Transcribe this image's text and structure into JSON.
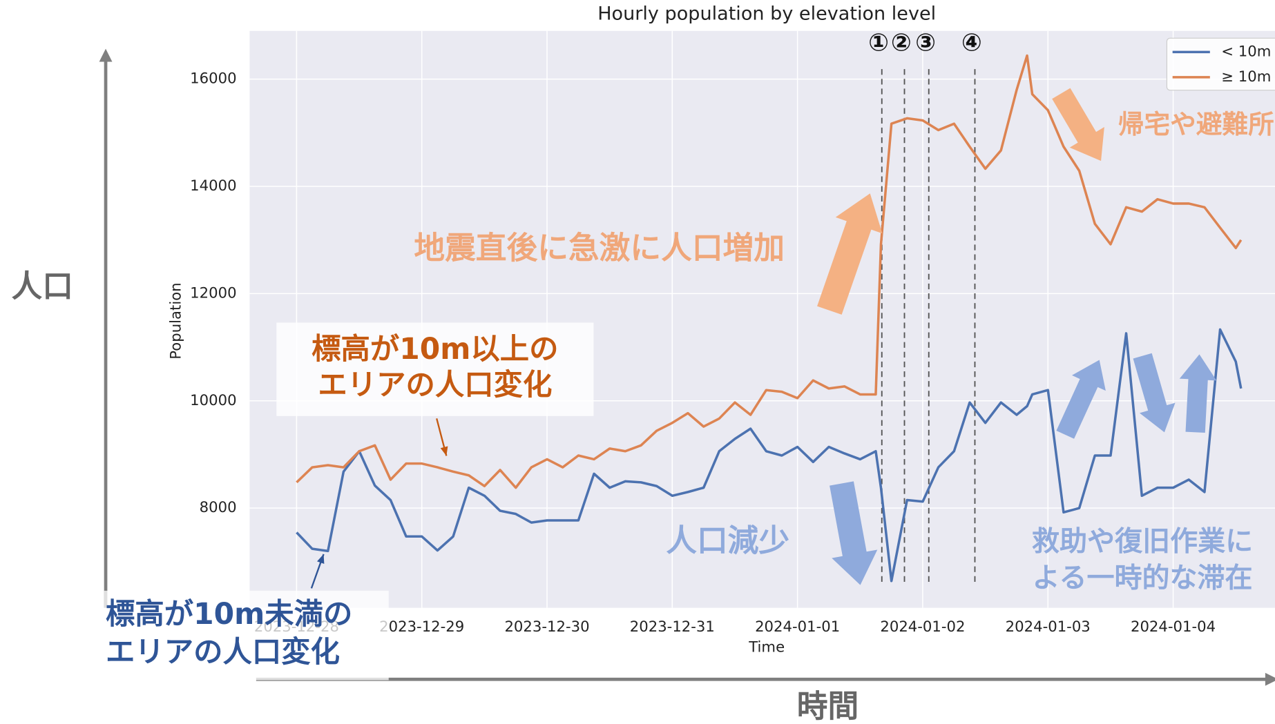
{
  "chart_data": {
    "type": "line",
    "title": "Hourly population by elevation level",
    "xlabel": "Time",
    "ylabel": "Population",
    "y_annotation": "人口",
    "x_annotation": "時間",
    "x": [
      "2023-12-28 00:00",
      "2023-12-28 03:00",
      "2023-12-28 06:00",
      "2023-12-28 09:00",
      "2023-12-28 12:00",
      "2023-12-28 15:00",
      "2023-12-28 18:00",
      "2023-12-28 21:00",
      "2023-12-29 00:00",
      "2023-12-29 03:00",
      "2023-12-29 06:00",
      "2023-12-29 09:00",
      "2023-12-29 12:00",
      "2023-12-29 15:00",
      "2023-12-29 18:00",
      "2023-12-29 21:00",
      "2023-12-30 00:00",
      "2023-12-30 03:00",
      "2023-12-30 06:00",
      "2023-12-30 09:00",
      "2023-12-30 12:00",
      "2023-12-30 15:00",
      "2023-12-30 18:00",
      "2023-12-30 21:00",
      "2023-12-31 00:00",
      "2023-12-31 03:00",
      "2023-12-31 06:00",
      "2023-12-31 09:00",
      "2023-12-31 12:00",
      "2023-12-31 15:00",
      "2023-12-31 18:00",
      "2023-12-31 21:00",
      "2024-01-01 00:00",
      "2024-01-01 03:00",
      "2024-01-01 06:00",
      "2024-01-01 09:00",
      "2024-01-01 12:00",
      "2024-01-01 15:00",
      "2024-01-01 16:00",
      "2024-01-01 18:00",
      "2024-01-01 21:00",
      "2024-01-02 00:00",
      "2024-01-02 03:00",
      "2024-01-02 06:00",
      "2024-01-02 09:00",
      "2024-01-02 12:00",
      "2024-01-02 15:00",
      "2024-01-02 18:00",
      "2024-01-02 20:00",
      "2024-01-02 21:00",
      "2024-01-03 00:00",
      "2024-01-03 03:00",
      "2024-01-03 06:00",
      "2024-01-03 09:00",
      "2024-01-03 12:00",
      "2024-01-03 15:00",
      "2024-01-03 18:00",
      "2024-01-03 21:00",
      "2024-01-04 00:00",
      "2024-01-04 03:00",
      "2024-01-04 06:00",
      "2024-01-04 09:00",
      "2024-01-04 12:00",
      "2024-01-04 13:00"
    ],
    "series": [
      {
        "name": "< 10m",
        "color": "#4c72b0",
        "values": [
          7545,
          7240,
          7200,
          8680,
          9060,
          8420,
          8150,
          7470,
          7470,
          7210,
          7470,
          8380,
          8230,
          7950,
          7890,
          7730,
          7770,
          7770,
          7770,
          8640,
          8380,
          8500,
          8480,
          8410,
          8230,
          8300,
          8380,
          9060,
          9290,
          9480,
          9060,
          8980,
          9140,
          8860,
          9140,
          9020,
          8910,
          9060,
          8380,
          6640,
          8150,
          8120,
          8760,
          9060,
          9970,
          9590,
          9970,
          9740,
          9900,
          10120,
          10200,
          7920,
          8000,
          8980,
          8980,
          11260,
          8230,
          8380,
          8380,
          8530,
          8300,
          11330,
          10730,
          10230
        ]
      },
      {
        "name": "≥ 10m",
        "color": "#dd8452",
        "values": [
          8480,
          8760,
          8800,
          8760,
          9060,
          9170,
          8530,
          8830,
          8830,
          8760,
          8680,
          8610,
          8410,
          8710,
          8380,
          8760,
          8910,
          8760,
          8980,
          8910,
          9110,
          9060,
          9170,
          9440,
          9590,
          9770,
          9520,
          9670,
          9970,
          9740,
          10200,
          10170,
          10050,
          10380,
          10230,
          10270,
          10120,
          10120,
          12920,
          15170,
          15270,
          15230,
          15050,
          15170,
          14740,
          14330,
          14670,
          15800,
          16440,
          15720,
          15420,
          14740,
          14290,
          13300,
          12920,
          13610,
          13530,
          13760,
          13680,
          13680,
          13610,
          13230,
          12850,
          13000
        ]
      }
    ],
    "xlim": [
      "2023-12-27 15:00",
      "2024-01-05 00:00"
    ],
    "xticks": [
      "2023-12-28",
      "2023-12-29",
      "2023-12-30",
      "2023-12-31",
      "2024-01-01",
      "2024-01-02",
      "2024-01-03",
      "2024-01-04"
    ],
    "ylim": [
      6140,
      16900
    ],
    "yticks": [
      8000,
      10000,
      12000,
      14000,
      16000
    ],
    "grid": true,
    "legend": "upper right",
    "events": [
      {
        "label": "①",
        "x": "2024-01-01 16:10"
      },
      {
        "label": "②",
        "x": "2024-01-01 20:30"
      },
      {
        "label": "③",
        "x": "2024-01-02 01:10"
      },
      {
        "label": "④",
        "x": "2024-01-02 10:00"
      }
    ],
    "annotations": [
      {
        "lines": [
          "地震直後に急激に人口増加"
        ],
        "color": "#f0a77a"
      },
      {
        "lines": [
          "帰宅や避難所"
        ],
        "color": "#f0a77a"
      },
      {
        "lines": [
          "標高が10m以上の",
          "エリアの人口変化"
        ],
        "color": "#c55a11"
      },
      {
        "lines": [
          "人口減少"
        ],
        "color": "#8faadc"
      },
      {
        "lines": [
          "救助や復旧作業に",
          "よる一時的な滞在"
        ],
        "color": "#8faadc"
      },
      {
        "lines": [
          "標高が10m未満の",
          "エリアの人口変化"
        ],
        "color": "#2f5597"
      }
    ]
  }
}
